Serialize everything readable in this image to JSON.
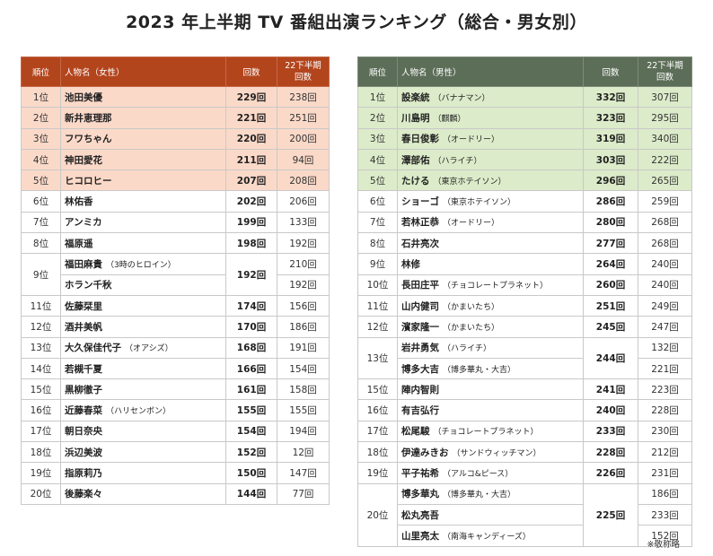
{
  "title": "2023 年上半期 TV 番組出演ランキング（総合・男女別）",
  "footnote": "※敬称略",
  "colors": {
    "female_header": "#b3451d",
    "female_top5": "#fbd9c8",
    "male_header": "#5d6e58",
    "male_top5": "#dcebc9"
  },
  "female": {
    "headers": {
      "rank": "順位",
      "name": "人物名（女性）",
      "count": "回数",
      "prev1": "22下半期",
      "prev2": "回数"
    },
    "rows": [
      {
        "rank": "1位",
        "people": [
          {
            "name": "池田美優",
            "note": "",
            "prev": "238回"
          }
        ],
        "count": "229回"
      },
      {
        "rank": "2位",
        "people": [
          {
            "name": "新井恵理那",
            "note": "",
            "prev": "251回"
          }
        ],
        "count": "221回"
      },
      {
        "rank": "3位",
        "people": [
          {
            "name": "フワちゃん",
            "note": "",
            "prev": "200回"
          }
        ],
        "count": "220回"
      },
      {
        "rank": "4位",
        "people": [
          {
            "name": "神田愛花",
            "note": "",
            "prev": "94回"
          }
        ],
        "count": "211回"
      },
      {
        "rank": "5位",
        "people": [
          {
            "name": "ヒコロヒー",
            "note": "",
            "prev": "208回"
          }
        ],
        "count": "207回"
      },
      {
        "rank": "6位",
        "people": [
          {
            "name": "林佑香",
            "note": "",
            "prev": "206回"
          }
        ],
        "count": "202回"
      },
      {
        "rank": "7位",
        "people": [
          {
            "name": "アンミカ",
            "note": "",
            "prev": "133回"
          }
        ],
        "count": "199回"
      },
      {
        "rank": "8位",
        "people": [
          {
            "name": "福原遥",
            "note": "",
            "prev": "192回"
          }
        ],
        "count": "198回"
      },
      {
        "rank": "9位",
        "people": [
          {
            "name": "福田麻貴",
            "note": "（3時のヒロイン）",
            "prev": "210回"
          },
          {
            "name": "ホラン千秋",
            "note": "",
            "prev": "192回"
          }
        ],
        "count": "192回"
      },
      {
        "rank": "11位",
        "people": [
          {
            "name": "佐藤栞里",
            "note": "",
            "prev": "156回"
          }
        ],
        "count": "174回"
      },
      {
        "rank": "12位",
        "people": [
          {
            "name": "酒井美帆",
            "note": "",
            "prev": "186回"
          }
        ],
        "count": "170回"
      },
      {
        "rank": "13位",
        "people": [
          {
            "name": "大久保佳代子",
            "note": "（オアシズ）",
            "prev": "191回"
          }
        ],
        "count": "168回"
      },
      {
        "rank": "14位",
        "people": [
          {
            "name": "若槻千夏",
            "note": "",
            "prev": "154回"
          }
        ],
        "count": "166回"
      },
      {
        "rank": "15位",
        "people": [
          {
            "name": "黒柳徹子",
            "note": "",
            "prev": "158回"
          }
        ],
        "count": "161回"
      },
      {
        "rank": "16位",
        "people": [
          {
            "name": "近藤春菜",
            "note": "（ハリセンボン）",
            "prev": "155回"
          }
        ],
        "count": "155回"
      },
      {
        "rank": "17位",
        "people": [
          {
            "name": "朝日奈央",
            "note": "",
            "prev": "194回"
          }
        ],
        "count": "154回"
      },
      {
        "rank": "18位",
        "people": [
          {
            "name": "浜辺美波",
            "note": "",
            "prev": "12回"
          }
        ],
        "count": "152回"
      },
      {
        "rank": "19位",
        "people": [
          {
            "name": "指原莉乃",
            "note": "",
            "prev": "147回"
          }
        ],
        "count": "150回"
      },
      {
        "rank": "20位",
        "people": [
          {
            "name": "後藤楽々",
            "note": "",
            "prev": "77回"
          }
        ],
        "count": "144回"
      }
    ]
  },
  "male": {
    "headers": {
      "rank": "順位",
      "name": "人物名（男性）",
      "count": "回数",
      "prev1": "22下半期",
      "prev2": "回数"
    },
    "rows": [
      {
        "rank": "1位",
        "people": [
          {
            "name": "設楽統",
            "note": "（バナナマン）",
            "prev": "307回"
          }
        ],
        "count": "332回"
      },
      {
        "rank": "2位",
        "people": [
          {
            "name": "川島明",
            "note": "（麒麟）",
            "prev": "295回"
          }
        ],
        "count": "323回"
      },
      {
        "rank": "3位",
        "people": [
          {
            "name": "春日俊彰",
            "note": "（オードリー）",
            "prev": "340回"
          }
        ],
        "count": "319回"
      },
      {
        "rank": "4位",
        "people": [
          {
            "name": "澤部佑",
            "note": "（ハライチ）",
            "prev": "222回"
          }
        ],
        "count": "303回"
      },
      {
        "rank": "5位",
        "people": [
          {
            "name": "たける",
            "note": "（東京ホテイソン）",
            "prev": "265回"
          }
        ],
        "count": "296回"
      },
      {
        "rank": "6位",
        "people": [
          {
            "name": "ショーゴ",
            "note": "（東京ホテイソン）",
            "prev": "259回"
          }
        ],
        "count": "286回"
      },
      {
        "rank": "7位",
        "people": [
          {
            "name": "若林正恭",
            "note": "（オードリー）",
            "prev": "268回"
          }
        ],
        "count": "280回"
      },
      {
        "rank": "8位",
        "people": [
          {
            "name": "石井亮次",
            "note": "",
            "prev": "268回"
          }
        ],
        "count": "277回"
      },
      {
        "rank": "9位",
        "people": [
          {
            "name": "林修",
            "note": "",
            "prev": "240回"
          }
        ],
        "count": "264回"
      },
      {
        "rank": "10位",
        "people": [
          {
            "name": "長田庄平",
            "note": "（チョコレートプラネット）",
            "prev": "240回"
          }
        ],
        "count": "260回"
      },
      {
        "rank": "11位",
        "people": [
          {
            "name": "山内健司",
            "note": "（かまいたち）",
            "prev": "249回"
          }
        ],
        "count": "251回"
      },
      {
        "rank": "12位",
        "people": [
          {
            "name": "濱家隆一",
            "note": "（かまいたち）",
            "prev": "247回"
          }
        ],
        "count": "245回"
      },
      {
        "rank": "13位",
        "people": [
          {
            "name": "岩井勇気",
            "note": "（ハライチ）",
            "prev": "132回"
          },
          {
            "name": "博多大吉",
            "note": "（博多華丸・大吉）",
            "prev": "221回"
          }
        ],
        "count": "244回"
      },
      {
        "rank": "15位",
        "people": [
          {
            "name": "陣内智則",
            "note": "",
            "prev": "223回"
          }
        ],
        "count": "241回"
      },
      {
        "rank": "16位",
        "people": [
          {
            "name": "有吉弘行",
            "note": "",
            "prev": "228回"
          }
        ],
        "count": "240回"
      },
      {
        "rank": "17位",
        "people": [
          {
            "name": "松尾駿",
            "note": "（チョコレートプラネット）",
            "prev": "230回"
          }
        ],
        "count": "233回"
      },
      {
        "rank": "18位",
        "people": [
          {
            "name": "伊達みきお",
            "note": "（サンドウィッチマン）",
            "prev": "212回"
          }
        ],
        "count": "228回"
      },
      {
        "rank": "19位",
        "people": [
          {
            "name": "平子祐希",
            "note": "（アルコ&ピース）",
            "prev": "231回"
          }
        ],
        "count": "226回"
      },
      {
        "rank": "20位",
        "people": [
          {
            "name": "博多華丸",
            "note": "（博多華丸・大吉）",
            "prev": "186回"
          },
          {
            "name": "松丸亮吾",
            "note": "",
            "prev": "233回"
          },
          {
            "name": "山里亮太",
            "note": "（南海キャンディーズ）",
            "prev": "152回"
          }
        ],
        "count": "225回"
      }
    ]
  }
}
